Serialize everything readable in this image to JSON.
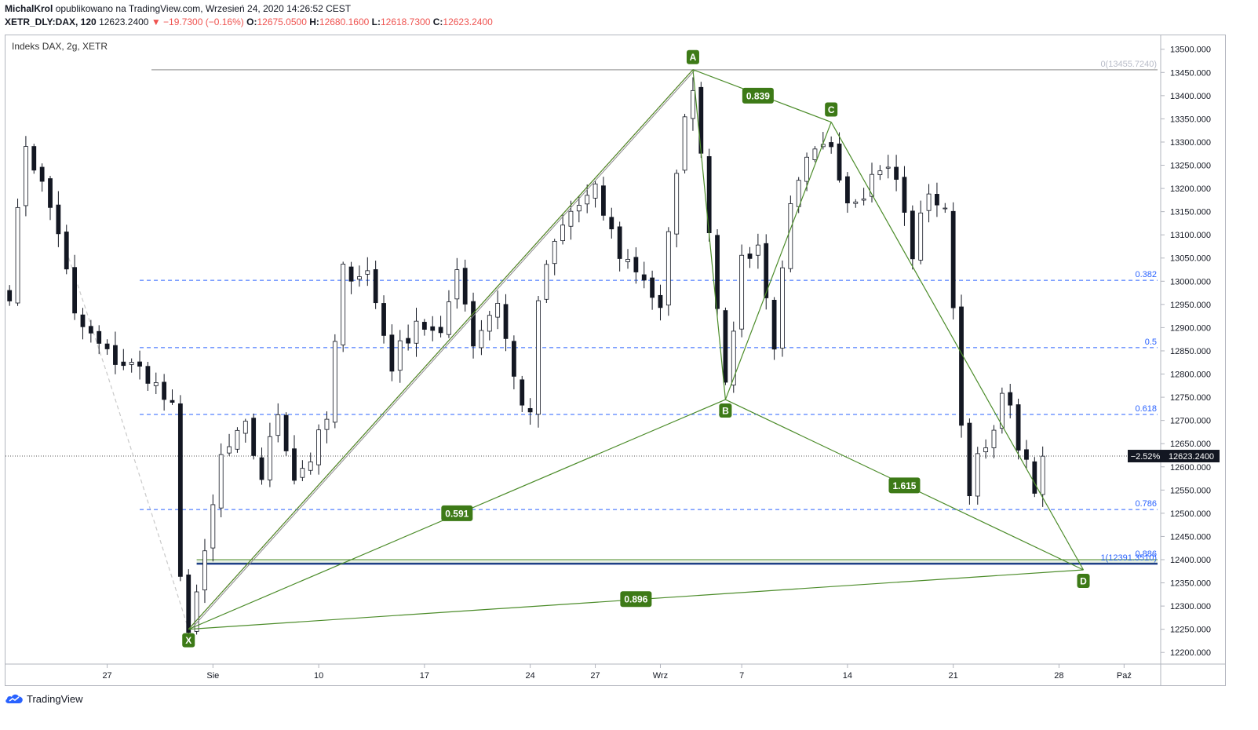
{
  "header": {
    "author": "MichalKrol",
    "published_text": "opublikowano na TradingView.com, Wrzesień 24, 2020 14:26:52 CEST",
    "symbol": "XETR_DLY:DAX, 120",
    "last": "12623.2400",
    "change": "▼ −19.7300 (−0.16%)",
    "o_label": "O:",
    "o_value": "12675.0500",
    "h_label": "H:",
    "h_value": "12680.1600",
    "l_label": "L:",
    "l_value": "12618.7300",
    "c_label": "C:",
    "c_value": "12623.2400"
  },
  "pane_title": "Indeks DAX, 2g, XETR",
  "footer": {
    "brand": "TradingView",
    "logo_icon": "tradingview-cloud-icon"
  },
  "colors": {
    "pattern": "#4c8c2a",
    "label_bg": "#3d7a17",
    "fib": "#2962ff",
    "candle_up": "#ffffff",
    "candle_down": "#131722",
    "trend_red": "#e53935"
  },
  "chart_data": {
    "type": "candlestick",
    "y_range": [
      12175,
      13530
    ],
    "y_ticks": [
      12200,
      12250,
      12300,
      12350,
      12400,
      12450,
      12500,
      12550,
      12600,
      12650,
      12700,
      12750,
      12800,
      12850,
      12900,
      12950,
      13000,
      13050,
      13100,
      13150,
      13200,
      13250,
      13300,
      13350,
      13400,
      13450,
      13500
    ],
    "y_tick_format": "0000.0000",
    "x_ticks": [
      {
        "i": 12,
        "label": "27"
      },
      {
        "i": 25,
        "label": "Sie"
      },
      {
        "i": 38,
        "label": "10"
      },
      {
        "i": 51,
        "label": "17"
      },
      {
        "i": 64,
        "label": "24"
      },
      {
        "i": 72,
        "label": "27"
      },
      {
        "i": 80,
        "label": "Wrz"
      },
      {
        "i": 90,
        "label": "7"
      },
      {
        "i": 103,
        "label": "14"
      },
      {
        "i": 116,
        "label": "21"
      },
      {
        "i": 129,
        "label": "28"
      },
      {
        "i": 137,
        "label": "Paź"
      }
    ],
    "last_price": {
      "value": 12623.24,
      "label": "12623.2400",
      "pct_label": "−2.52%"
    },
    "fib_levels": [
      {
        "level": "0(13455.7240)",
        "value": 13455.72,
        "style": "gray"
      },
      {
        "level": "0.382",
        "value": 13002,
        "style": "blue"
      },
      {
        "level": "0.5",
        "value": 12857,
        "style": "blue"
      },
      {
        "level": "0.618",
        "value": 12713,
        "style": "blue"
      },
      {
        "level": "0.786",
        "value": 12508,
        "style": "blue"
      },
      {
        "level": "0.886",
        "value": 12400,
        "style": "green"
      },
      {
        "level": "1(12391.3510)",
        "value": 12391.35,
        "style": "darkblue"
      }
    ],
    "pattern_points": [
      {
        "name": "X",
        "i": 22,
        "value": 12250
      },
      {
        "name": "A",
        "i": 84,
        "value": 13456
      },
      {
        "name": "B",
        "i": 88,
        "value": 12745
      },
      {
        "name": "C",
        "i": 101,
        "value": 13343
      },
      {
        "name": "D",
        "i": 132,
        "value": 12378
      }
    ],
    "pattern_ratios": [
      {
        "label": "0.839",
        "i": 92,
        "value": 13400
      },
      {
        "label": "0.591",
        "i": 55,
        "value": 12500
      },
      {
        "label": "1.615",
        "i": 110,
        "value": 12560
      },
      {
        "label": "0.896",
        "i": 77,
        "value": 12315
      }
    ],
    "trendline": {
      "from": {
        "i": 22,
        "value": 12250
      },
      "to": {
        "i": 84,
        "value": 13456
      }
    },
    "dashed_path": [
      {
        "i": 7,
        "value": 13065
      },
      {
        "i": 12,
        "value": 12800
      },
      {
        "i": 22,
        "value": 12250
      }
    ],
    "anchors": [
      {
        "i": 0,
        "value": 12980
      },
      {
        "i": 2,
        "value": 13300
      },
      {
        "i": 6,
        "value": 13110
      },
      {
        "i": 8,
        "value": 12920
      },
      {
        "i": 12,
        "value": 12840
      },
      {
        "i": 17,
        "value": 12800
      },
      {
        "i": 20,
        "value": 12720
      },
      {
        "i": 21,
        "value": 12350
      },
      {
        "i": 22,
        "value": 12260
      },
      {
        "i": 24,
        "value": 12400
      },
      {
        "i": 26,
        "value": 12620
      },
      {
        "i": 29,
        "value": 12680
      },
      {
        "i": 31,
        "value": 12580
      },
      {
        "i": 33,
        "value": 12720
      },
      {
        "i": 35,
        "value": 12580
      },
      {
        "i": 37,
        "value": 12620
      },
      {
        "i": 39,
        "value": 12700
      },
      {
        "i": 41,
        "value": 13020
      },
      {
        "i": 44,
        "value": 13020
      },
      {
        "i": 47,
        "value": 12820
      },
      {
        "i": 50,
        "value": 12920
      },
      {
        "i": 53,
        "value": 12870
      },
      {
        "i": 55,
        "value": 13040
      },
      {
        "i": 57,
        "value": 12870
      },
      {
        "i": 60,
        "value": 12960
      },
      {
        "i": 62,
        "value": 12790
      },
      {
        "i": 64,
        "value": 12700
      },
      {
        "i": 65,
        "value": 12960
      },
      {
        "i": 67,
        "value": 13080
      },
      {
        "i": 69,
        "value": 13150
      },
      {
        "i": 72,
        "value": 13190
      },
      {
        "i": 75,
        "value": 13060
      },
      {
        "i": 78,
        "value": 13010
      },
      {
        "i": 80,
        "value": 12930
      },
      {
        "i": 82,
        "value": 13250
      },
      {
        "i": 84,
        "value": 13430
      },
      {
        "i": 85,
        "value": 13280
      },
      {
        "i": 86,
        "value": 13120
      },
      {
        "i": 87,
        "value": 12960
      },
      {
        "i": 88,
        "value": 12760
      },
      {
        "i": 90,
        "value": 13050
      },
      {
        "i": 92,
        "value": 13080
      },
      {
        "i": 93,
        "value": 12960
      },
      {
        "i": 94,
        "value": 12870
      },
      {
        "i": 96,
        "value": 13150
      },
      {
        "i": 98,
        "value": 13250
      },
      {
        "i": 101,
        "value": 13300
      },
      {
        "i": 103,
        "value": 13180
      },
      {
        "i": 105,
        "value": 13200
      },
      {
        "i": 107,
        "value": 13250
      },
      {
        "i": 109,
        "value": 13220
      },
      {
        "i": 111,
        "value": 13060
      },
      {
        "i": 113,
        "value": 13200
      },
      {
        "i": 115,
        "value": 13140
      },
      {
        "i": 116,
        "value": 12960
      },
      {
        "i": 117,
        "value": 12690
      },
      {
        "i": 118,
        "value": 12560
      },
      {
        "i": 119,
        "value": 12610
      },
      {
        "i": 121,
        "value": 12660
      },
      {
        "i": 122,
        "value": 12780
      },
      {
        "i": 124,
        "value": 12650
      },
      {
        "i": 126,
        "value": 12540
      },
      {
        "i": 127,
        "value": 12623
      }
    ]
  }
}
